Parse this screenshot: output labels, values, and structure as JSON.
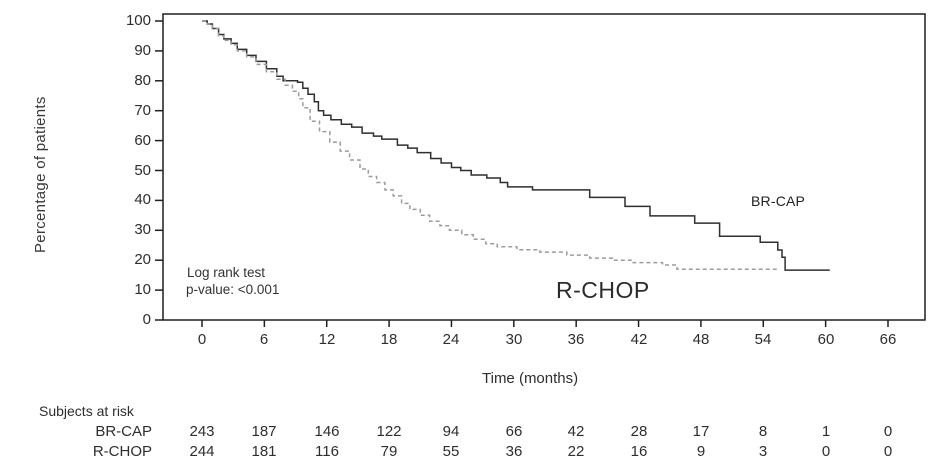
{
  "figure": {
    "y_axis_label": "Percentage of patients",
    "x_axis_label": "Time (months)",
    "annotation_line1": "Log rank test",
    "annotation_line2": "p-value: <0.001",
    "curve_label_brcap": "BR-CAP",
    "curve_label_rchop": "R-CHOP"
  },
  "chart_data": {
    "type": "line",
    "subtype": "kaplan-meier-step",
    "title": "",
    "xlabel": "Time (months)",
    "ylabel": "Percentage of patients",
    "xlim": [
      0,
      66
    ],
    "ylim": [
      0,
      100
    ],
    "xticks": [
      0,
      6,
      12,
      18,
      24,
      30,
      36,
      42,
      48,
      54,
      60,
      66
    ],
    "yticks": [
      0,
      10,
      20,
      30,
      40,
      50,
      60,
      70,
      80,
      90,
      100
    ],
    "grid": false,
    "legend_position": "inline-labels",
    "annotation": "Log rank test p-value: <0.001",
    "series": [
      {
        "name": "BR-CAP",
        "line_style": "solid",
        "color": "#2f2f2f",
        "points": [
          [
            0,
            100
          ],
          [
            0.5,
            99
          ],
          [
            1,
            97.5
          ],
          [
            1.6,
            95.5
          ],
          [
            2.1,
            94
          ],
          [
            2.8,
            92.5
          ],
          [
            3.4,
            90.5
          ],
          [
            4.3,
            88.5
          ],
          [
            5.2,
            86.5
          ],
          [
            6.2,
            84
          ],
          [
            7.2,
            81.5
          ],
          [
            7.8,
            80
          ],
          [
            9.2,
            79.5
          ],
          [
            9.7,
            77.5
          ],
          [
            10.2,
            75.5
          ],
          [
            10.8,
            73
          ],
          [
            11.2,
            70
          ],
          [
            11.7,
            68.5
          ],
          [
            12.4,
            67
          ],
          [
            13.4,
            65.5
          ],
          [
            14.4,
            64.5
          ],
          [
            15.4,
            62.5
          ],
          [
            16.5,
            61.5
          ],
          [
            17.3,
            60.5
          ],
          [
            18.8,
            58.5
          ],
          [
            19.8,
            57.5
          ],
          [
            20.7,
            56
          ],
          [
            22,
            54
          ],
          [
            23,
            52.5
          ],
          [
            24,
            51
          ],
          [
            24.9,
            50
          ],
          [
            25.9,
            48.5
          ],
          [
            27.4,
            47.5
          ],
          [
            28.7,
            46
          ],
          [
            29.4,
            44.5
          ],
          [
            31.8,
            43.5
          ],
          [
            37.3,
            41
          ],
          [
            40.7,
            38
          ],
          [
            43.1,
            34.8
          ],
          [
            47.4,
            32.4
          ],
          [
            49.8,
            28
          ],
          [
            53.7,
            26
          ],
          [
            55.4,
            23.4
          ],
          [
            55.8,
            21
          ],
          [
            56.1,
            16.7
          ],
          [
            60.4,
            16.7
          ]
        ]
      },
      {
        "name": "R-CHOP",
        "line_style": "dashed",
        "color": "#9c9c9c",
        "points": [
          [
            0,
            100
          ],
          [
            0.5,
            99
          ],
          [
            1,
            97.5
          ],
          [
            1.6,
            95
          ],
          [
            2.1,
            93.5
          ],
          [
            2.8,
            92
          ],
          [
            3.4,
            90
          ],
          [
            4.3,
            88
          ],
          [
            5.2,
            85.5
          ],
          [
            6.2,
            83
          ],
          [
            7.2,
            80.5
          ],
          [
            8,
            78.5
          ],
          [
            8.7,
            76.5
          ],
          [
            9.3,
            74
          ],
          [
            9.7,
            71
          ],
          [
            10.4,
            66.5
          ],
          [
            11.3,
            63
          ],
          [
            12.3,
            59.5
          ],
          [
            13.3,
            56.5
          ],
          [
            14.2,
            53.5
          ],
          [
            15.2,
            50.5
          ],
          [
            16,
            48
          ],
          [
            16.8,
            46
          ],
          [
            17.6,
            43.5
          ],
          [
            18.4,
            41.5
          ],
          [
            19.2,
            39
          ],
          [
            20,
            37
          ],
          [
            21,
            35
          ],
          [
            21.9,
            33
          ],
          [
            22.9,
            31.5
          ],
          [
            23.8,
            30
          ],
          [
            25,
            28.5
          ],
          [
            26.1,
            27
          ],
          [
            27.3,
            25.5
          ],
          [
            28.4,
            24.5
          ],
          [
            30.3,
            23.5
          ],
          [
            32.5,
            22.7
          ],
          [
            35.1,
            21.7
          ],
          [
            37.3,
            20.7
          ],
          [
            39.5,
            20
          ],
          [
            41.4,
            19.2
          ],
          [
            44.3,
            18.4
          ],
          [
            45.7,
            17
          ],
          [
            55.3,
            17
          ]
        ]
      }
    ]
  },
  "subjects_at_risk": {
    "title": "Subjects at risk",
    "times": [
      0,
      6,
      12,
      18,
      24,
      30,
      36,
      42,
      48,
      54,
      60,
      66
    ],
    "rows": [
      {
        "label": "BR-CAP",
        "counts": [
          243,
          187,
          146,
          122,
          94,
          66,
          42,
          28,
          17,
          8,
          1,
          0
        ]
      },
      {
        "label": "R-CHOP",
        "counts": [
          244,
          181,
          116,
          79,
          55,
          36,
          22,
          16,
          9,
          3,
          0,
          0
        ]
      }
    ]
  },
  "colors": {
    "axis": "#1f1f1f",
    "solid_series": "#2f2f2f",
    "dashed_series": "#9c9c9c",
    "text": "#2e2e2e",
    "background": "#ffffff"
  }
}
